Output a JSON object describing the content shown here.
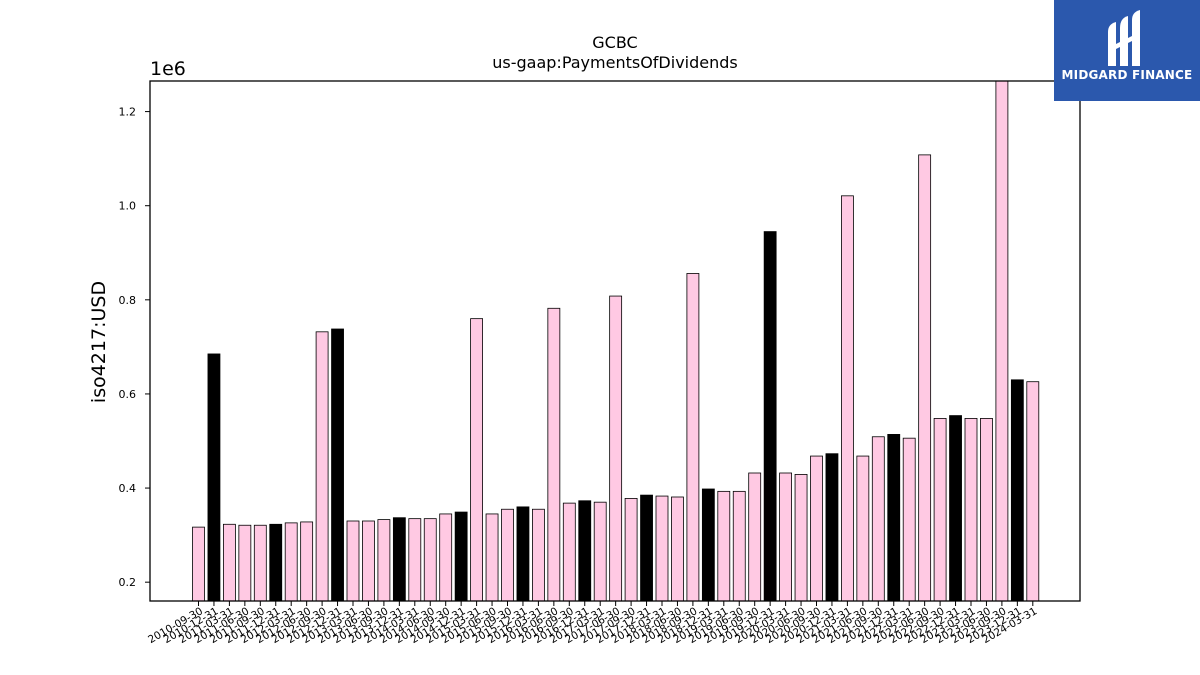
{
  "chart_data": {
    "type": "bar",
    "title": "GCBC",
    "subtitle": "us-gaap:PaymentsOfDividends",
    "ylabel": "iso4217:USD",
    "xlabel": "",
    "y_multiplier_label": "1e6",
    "ylim": [
      160000,
      1265000
    ],
    "yticks": [
      200000,
      400000,
      600000,
      800000,
      1000000,
      1200000
    ],
    "ytick_labels": [
      "0.2",
      "0.4",
      "0.6",
      "0.8",
      "1.0",
      "1.2"
    ],
    "grid": false,
    "colors": {
      "quarter": "#ffc9e3",
      "year_end": "#000000",
      "edge": "#000000"
    },
    "categories": [
      "2010-09-30",
      "2010-12-31",
      "2011-03-31",
      "2011-06-30",
      "2011-09-30",
      "2011-12-31",
      "2012-03-31",
      "2012-06-30",
      "2012-09-30",
      "2012-12-31",
      "2013-03-31",
      "2013-06-30",
      "2013-09-30",
      "2013-12-31",
      "2014-03-31",
      "2014-06-30",
      "2014-09-30",
      "2014-12-31",
      "2015-03-31",
      "2015-06-30",
      "2015-09-30",
      "2015-12-31",
      "2016-03-31",
      "2016-06-30",
      "2016-09-30",
      "2016-12-31",
      "2017-03-31",
      "2017-06-30",
      "2017-09-30",
      "2017-12-31",
      "2018-03-31",
      "2018-06-30",
      "2018-09-30",
      "2018-12-31",
      "2019-03-31",
      "2019-06-30",
      "2019-09-30",
      "2019-12-31",
      "2020-03-31",
      "2020-06-30",
      "2020-09-30",
      "2020-12-31",
      "2021-03-31",
      "2021-06-30",
      "2021-09-30",
      "2021-12-31",
      "2022-03-31",
      "2022-06-30",
      "2022-09-30",
      "2022-12-31",
      "2023-03-31",
      "2023-06-30",
      "2023-09-30",
      "2023-12-31",
      "2024-03-31"
    ],
    "values": [
      317000,
      685000,
      323000,
      321000,
      321000,
      323000,
      326000,
      328000,
      732000,
      738000,
      330000,
      330000,
      333000,
      337000,
      335000,
      335000,
      345000,
      349000,
      760000,
      345000,
      355000,
      360000,
      355000,
      782000,
      368000,
      373000,
      370000,
      808000,
      378000,
      385000,
      383000,
      381000,
      856000,
      398000,
      393000,
      393000,
      432000,
      945000,
      432000,
      429000,
      468000,
      473000,
      1021000,
      468000,
      509000,
      514000,
      506000,
      1108000,
      548000,
      554000,
      548000,
      548000,
      1265000,
      630000,
      626000
    ],
    "highlight_year_end": [
      false,
      true,
      false,
      false,
      false,
      true,
      false,
      false,
      false,
      true,
      false,
      false,
      false,
      true,
      false,
      false,
      false,
      true,
      false,
      false,
      false,
      true,
      false,
      false,
      false,
      true,
      false,
      false,
      false,
      true,
      false,
      false,
      false,
      true,
      false,
      false,
      false,
      true,
      false,
      false,
      false,
      true,
      false,
      false,
      false,
      true,
      false,
      false,
      false,
      true,
      false,
      false,
      false,
      true,
      false
    ]
  },
  "logo": {
    "text": "MIDGARD FINANCE",
    "icon": "midgard-logo-icon",
    "color": "#2b58ad"
  }
}
